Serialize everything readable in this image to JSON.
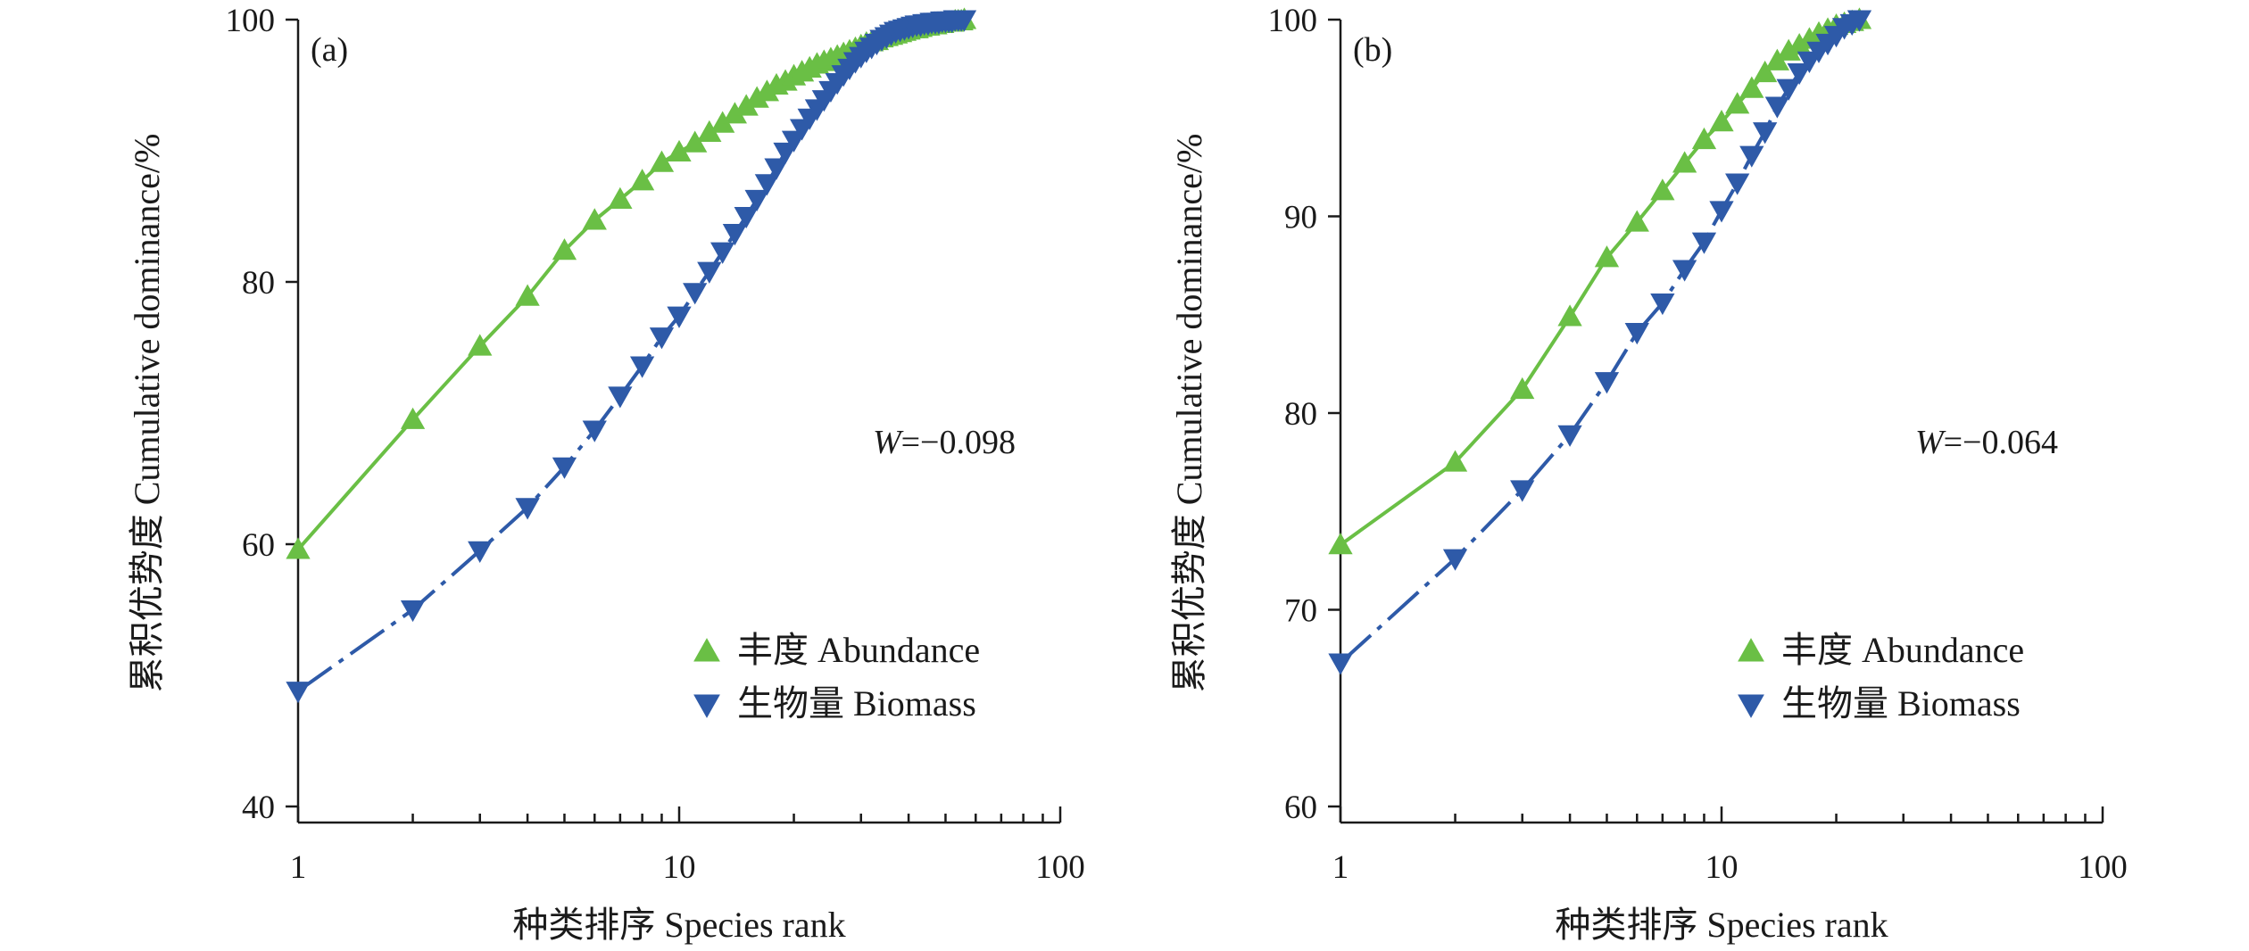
{
  "chart_data": [
    {
      "type": "line",
      "panel_label": "(a)",
      "xlabel": "种类排序 Species rank",
      "ylabel": "累积优势度 Cumulative dominance/%",
      "x_scale": "log",
      "xlim": [
        1,
        100
      ],
      "ylim": [
        40,
        100
      ],
      "x_ticks": [
        1,
        10,
        100
      ],
      "x_tick_labels": [
        "1",
        "10",
        "100"
      ],
      "y_ticks": [
        40,
        60,
        80,
        100
      ],
      "y_tick_labels": [
        "40",
        "60",
        "80",
        "100"
      ],
      "annotation": {
        "text": "W=−0.098",
        "italic_part": "W",
        "rest": "=−0.098"
      },
      "legend": {
        "placement": "bottom-right"
      },
      "series": [
        {
          "name": "丰度 Abundance",
          "color": "#6abf45",
          "marker": "triangle-up",
          "line_style": "solid",
          "x": [
            1,
            2,
            3,
            4,
            5,
            6,
            7,
            8,
            9,
            10,
            11,
            12,
            13,
            14,
            15,
            16,
            17,
            18,
            19,
            20,
            21,
            22,
            23,
            24,
            25,
            26,
            27,
            28,
            29,
            30,
            31,
            32,
            33,
            34,
            35,
            36,
            37,
            38,
            39,
            40,
            41,
            42,
            43,
            44,
            45,
            46,
            47,
            48,
            49,
            50,
            51,
            52,
            53,
            54,
            55,
            56
          ],
          "values": [
            59.6,
            69.5,
            75.1,
            78.9,
            82.4,
            84.7,
            86.3,
            87.7,
            89.1,
            89.9,
            90.6,
            91.4,
            92.1,
            92.8,
            93.4,
            94.0,
            94.5,
            95.0,
            95.3,
            95.7,
            96.0,
            96.3,
            96.6,
            96.8,
            97.0,
            97.2,
            97.4,
            97.6,
            97.8,
            98.0,
            98.2,
            98.3,
            98.4,
            98.6,
            98.7,
            98.8,
            98.9,
            99.0,
            99.1,
            99.2,
            99.3,
            99.3,
            99.4,
            99.5,
            99.5,
            99.6,
            99.6,
            99.7,
            99.7,
            99.8,
            99.8,
            99.8,
            99.9,
            99.9,
            99.9,
            100.0
          ]
        },
        {
          "name": "生物量 Biomass",
          "color": "#2e5aa8",
          "marker": "triangle-down",
          "line_style": "dashdot",
          "x": [
            1,
            2,
            3,
            4,
            5,
            6,
            7,
            8,
            9,
            10,
            11,
            12,
            13,
            14,
            15,
            16,
            17,
            18,
            19,
            20,
            21,
            22,
            23,
            24,
            25,
            26,
            27,
            28,
            29,
            30,
            31,
            32,
            33,
            34,
            35,
            36,
            37,
            38,
            39,
            40,
            41,
            42,
            43,
            44,
            45,
            46,
            47,
            48,
            49,
            50,
            51,
            52,
            53,
            54,
            55,
            56
          ],
          "values": [
            48.8,
            55.0,
            59.5,
            62.8,
            65.9,
            68.7,
            71.3,
            73.6,
            75.8,
            77.4,
            79.2,
            80.8,
            82.3,
            83.7,
            85.0,
            86.3,
            87.5,
            88.7,
            89.9,
            90.8,
            91.7,
            92.5,
            93.2,
            93.9,
            94.6,
            95.2,
            95.8,
            96.3,
            96.8,
            97.2,
            97.6,
            97.9,
            98.2,
            98.5,
            98.7,
            98.9,
            99.1,
            99.2,
            99.3,
            99.4,
            99.5,
            99.6,
            99.6,
            99.7,
            99.7,
            99.8,
            99.8,
            99.8,
            99.9,
            99.9,
            99.9,
            99.9,
            100.0,
            100.0,
            100.0,
            100.0
          ]
        }
      ]
    },
    {
      "type": "line",
      "panel_label": "(b)",
      "xlabel": "种类排序 Species rank",
      "ylabel": "累积优势度 Cumulative dominance/%",
      "x_scale": "log",
      "xlim": [
        1,
        100
      ],
      "ylim": [
        60,
        100
      ],
      "x_ticks": [
        1,
        10,
        100
      ],
      "x_tick_labels": [
        "1",
        "10",
        "100"
      ],
      "y_ticks": [
        60,
        70,
        80,
        90,
        100
      ],
      "y_tick_labels": [
        "60",
        "70",
        "80",
        "90",
        "100"
      ],
      "annotation": {
        "text": "W=−0.064",
        "italic_part": "W",
        "rest": "=−0.064"
      },
      "legend": {
        "placement": "bottom-right"
      },
      "series": [
        {
          "name": "丰度 Abundance",
          "color": "#6abf45",
          "marker": "triangle-up",
          "line_style": "solid",
          "x": [
            1,
            2,
            3,
            4,
            5,
            6,
            7,
            8,
            9,
            10,
            11,
            12,
            13,
            14,
            15,
            16,
            17,
            18,
            19,
            20,
            21,
            22,
            23
          ],
          "values": [
            73.3,
            77.5,
            81.2,
            84.9,
            87.9,
            89.7,
            91.3,
            92.7,
            93.9,
            94.8,
            95.7,
            96.5,
            97.3,
            97.9,
            98.4,
            98.7,
            99.0,
            99.3,
            99.5,
            99.7,
            99.8,
            99.9,
            100.0
          ]
        },
        {
          "name": "生物量 Biomass",
          "color": "#2e5aa8",
          "marker": "triangle-down",
          "line_style": "dashdot",
          "x": [
            1,
            2,
            3,
            4,
            5,
            6,
            7,
            8,
            9,
            10,
            11,
            12,
            13,
            14,
            15,
            16,
            17,
            18,
            19,
            20,
            21,
            22,
            23
          ],
          "values": [
            67.3,
            72.6,
            76.1,
            78.9,
            81.6,
            84.1,
            85.6,
            87.3,
            88.7,
            90.3,
            91.7,
            93.1,
            94.3,
            95.6,
            96.5,
            97.3,
            97.9,
            98.4,
            98.8,
            99.2,
            99.6,
            99.8,
            100.0
          ]
        }
      ]
    }
  ]
}
